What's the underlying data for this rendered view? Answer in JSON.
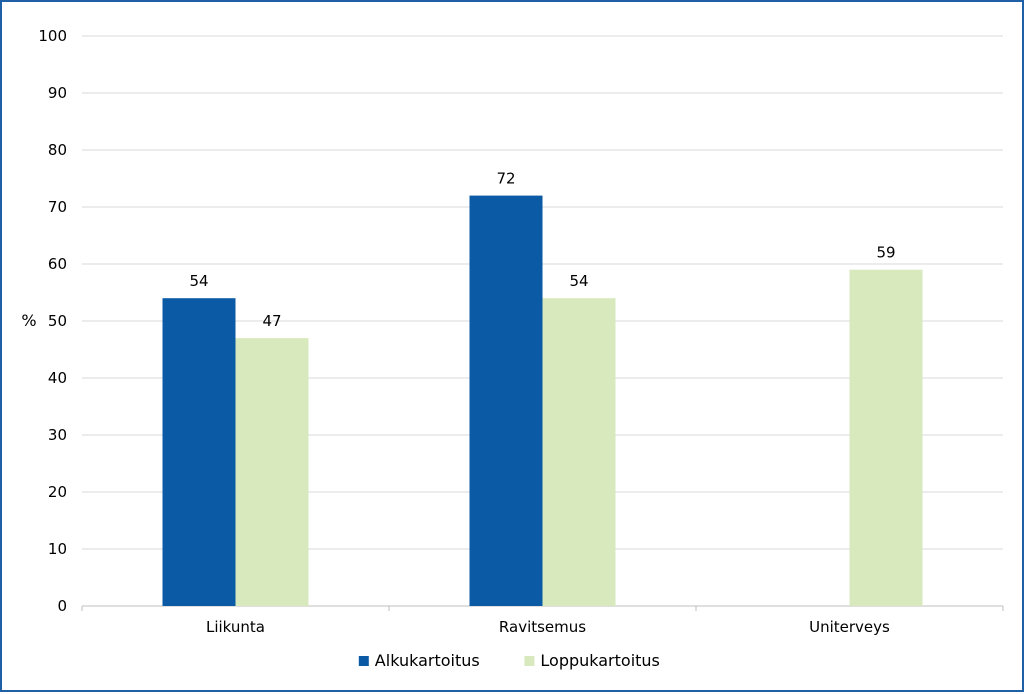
{
  "chart_data": {
    "type": "bar",
    "title": "",
    "xlabel": "",
    "ylabel": "%",
    "ylim": [
      0,
      100
    ],
    "yticks": [
      0,
      10,
      20,
      30,
      40,
      50,
      60,
      70,
      80,
      90,
      100
    ],
    "categories": [
      "Liikunta",
      "Ravitsemus",
      "Uniterveys"
    ],
    "series": [
      {
        "name": "Alkukartoitus",
        "color": "#0a5aa5",
        "values": [
          54,
          72,
          null
        ]
      },
      {
        "name": "Loppukartoitus",
        "color": "#d7e9bd",
        "values": [
          47,
          54,
          59
        ]
      }
    ],
    "grid": true,
    "legend_position": "bottom-center",
    "data_labels": true
  }
}
